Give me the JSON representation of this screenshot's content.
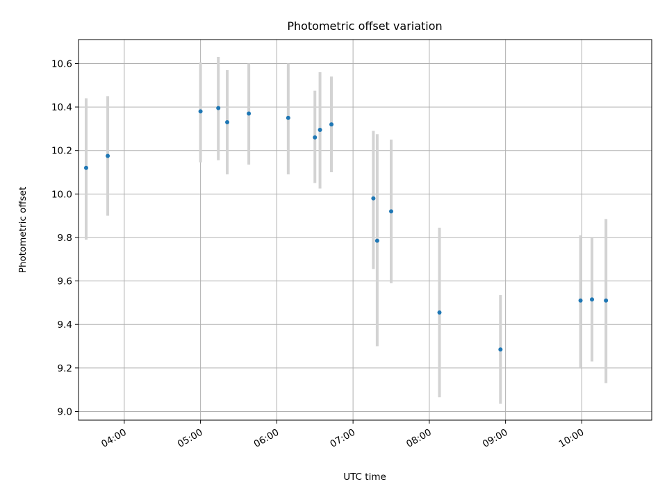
{
  "chart_data": {
    "type": "scatter",
    "title": "Photometric offset variation",
    "xlabel": "UTC time",
    "ylabel": "Photometric offset",
    "x_ticks": [
      "04:00",
      "05:00",
      "06:00",
      "07:00",
      "08:00",
      "09:00",
      "10:00"
    ],
    "y_ticks": [
      "9.0",
      "9.2",
      "9.4",
      "9.6",
      "9.8",
      "10.0",
      "10.2",
      "10.4",
      "10.6"
    ],
    "xlim": [
      "03:24",
      "10:55"
    ],
    "ylim": [
      8.96,
      10.71
    ],
    "grid": true,
    "marker_color": "#1f77b4",
    "errorbar_color": "#d3d3d3",
    "points": [
      {
        "time": "03:30",
        "value": 10.12,
        "low": 9.79,
        "high": 10.44
      },
      {
        "time": "03:47",
        "value": 10.175,
        "low": 9.9,
        "high": 10.45
      },
      {
        "time": "05:00",
        "value": 10.38,
        "low": 10.145,
        "high": 10.605
      },
      {
        "time": "05:14",
        "value": 10.395,
        "low": 10.155,
        "high": 10.63
      },
      {
        "time": "05:21",
        "value": 10.33,
        "low": 10.09,
        "high": 10.57
      },
      {
        "time": "05:38",
        "value": 10.37,
        "low": 10.135,
        "high": 10.6
      },
      {
        "time": "06:09",
        "value": 10.35,
        "low": 10.09,
        "high": 10.6
      },
      {
        "time": "06:30",
        "value": 10.26,
        "low": 10.05,
        "high": 10.475
      },
      {
        "time": "06:34",
        "value": 10.295,
        "low": 10.025,
        "high": 10.56
      },
      {
        "time": "06:43",
        "value": 10.32,
        "low": 10.1,
        "high": 10.54
      },
      {
        "time": "07:16",
        "value": 9.98,
        "low": 9.655,
        "high": 10.29
      },
      {
        "time": "07:19",
        "value": 9.785,
        "low": 9.3,
        "high": 10.275
      },
      {
        "time": "07:30",
        "value": 9.92,
        "low": 9.59,
        "high": 10.25
      },
      {
        "time": "08:08",
        "value": 9.455,
        "low": 9.065,
        "high": 9.845
      },
      {
        "time": "08:56",
        "value": 9.285,
        "low": 9.035,
        "high": 9.535
      },
      {
        "time": "09:59",
        "value": 9.51,
        "low": 9.2,
        "high": 9.81
      },
      {
        "time": "10:08",
        "value": 9.515,
        "low": 9.23,
        "high": 9.8
      },
      {
        "time": "10:19",
        "value": 9.51,
        "low": 9.13,
        "high": 9.885
      }
    ]
  }
}
